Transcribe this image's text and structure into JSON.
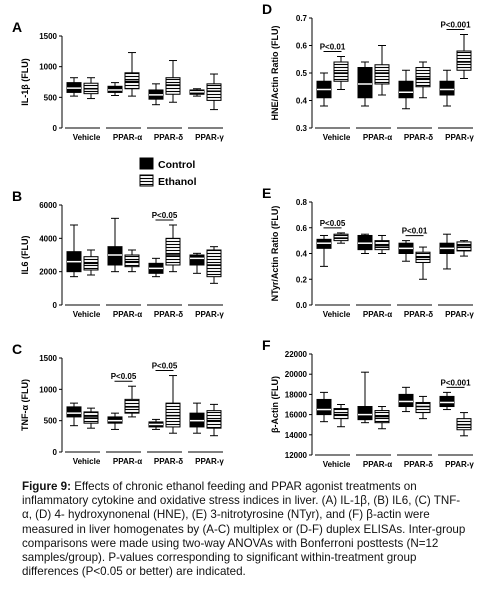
{
  "legend": [
    {
      "name": "Control",
      "color": "#000000"
    },
    {
      "name": "Ethanol",
      "color": "#ffffff",
      "pattern": "stripes"
    }
  ],
  "chart_data": [
    {
      "type": "box",
      "title": "A",
      "y_label": "IL-1β (FLU)",
      "categories": [
        "Vehicle",
        "PPAR-α",
        "PPAR-δ",
        "PPAR-γ"
      ],
      "ylim": [
        0,
        1500
      ],
      "yticks": [
        0,
        500,
        1000,
        1500
      ],
      "series": [
        {
          "values": [
            [
              520,
              580,
              650,
              740,
              820
            ],
            [
              530,
              580,
              620,
              680,
              740
            ],
            [
              380,
              470,
              540,
              620,
              720
            ],
            [
              520,
              550,
              590,
              620,
              640
            ]
          ]
        },
        {
          "values": [
            [
              480,
              560,
              640,
              730,
              820
            ],
            [
              520,
              640,
              760,
              900,
              1230
            ],
            [
              420,
              550,
              700,
              820,
              1100
            ],
            [
              300,
              450,
              600,
              720,
              880
            ]
          ]
        }
      ],
      "annotations": []
    },
    {
      "type": "box",
      "title": "B",
      "y_label": "IL6 (FLU)",
      "categories": [
        "Vehicle",
        "PPAR-α",
        "PPAR-δ",
        "PPAR-γ"
      ],
      "ylim": [
        0,
        6000
      ],
      "yticks": [
        0,
        2000,
        4000,
        6000
      ],
      "series": [
        {
          "values": [
            [
              1700,
              2000,
              2600,
              3200,
              4800
            ],
            [
              2000,
              2400,
              3000,
              3500,
              5200
            ],
            [
              1700,
              1900,
              2200,
              2500,
              2800
            ],
            [
              1900,
              2400,
              2800,
              3000,
              3100
            ]
          ]
        },
        {
          "values": [
            [
              1800,
              2100,
              2500,
              2900,
              3300
            ],
            [
              2000,
              2300,
              2600,
              3000,
              3300
            ],
            [
              2000,
              2400,
              3000,
              4000,
              4800
            ],
            [
              1300,
              1700,
              2400,
              3300,
              3500
            ]
          ]
        }
      ],
      "annotations": [
        {
          "text": "P<0.05",
          "category": "PPAR-δ"
        }
      ]
    },
    {
      "type": "box",
      "title": "C",
      "y_label": "TNF-α (FLU)",
      "categories": [
        "Vehicle",
        "PPAR-α",
        "PPAR-δ",
        "PPAR-γ"
      ],
      "ylim": [
        0,
        1500
      ],
      "yticks": [
        0,
        500,
        1000,
        1500
      ],
      "series": [
        {
          "values": [
            [
              420,
              560,
              620,
              720,
              780
            ],
            [
              360,
              460,
              500,
              560,
              620
            ],
            [
              360,
              400,
              440,
              480,
              520
            ],
            [
              300,
              400,
              500,
              620,
              780
            ]
          ]
        },
        {
          "values": [
            [
              380,
              460,
              560,
              640,
              700
            ],
            [
              560,
              620,
              720,
              840,
              1050
            ],
            [
              300,
              400,
              580,
              780,
              1220
            ],
            [
              260,
              380,
              500,
              660,
              760
            ]
          ]
        }
      ],
      "annotations": [
        {
          "text": "P<0.05",
          "category": "PPAR-α"
        },
        {
          "text": "P<0.05",
          "category": "PPAR-δ"
        }
      ]
    },
    {
      "type": "box",
      "title": "D",
      "y_label": "HNE/Actin Ratio (FLU)",
      "categories": [
        "Vehicle",
        "PPAR-α",
        "PPAR-δ",
        "PPAR-γ"
      ],
      "ylim": [
        0.3,
        0.7
      ],
      "yticks": [
        0.3,
        0.4,
        0.5,
        0.6,
        0.7
      ],
      "series": [
        {
          "values": [
            [
              0.38,
              0.41,
              0.44,
              0.47,
              0.5
            ],
            [
              0.38,
              0.41,
              0.46,
              0.52,
              0.54
            ],
            [
              0.37,
              0.41,
              0.43,
              0.47,
              0.51
            ],
            [
              0.38,
              0.42,
              0.44,
              0.47,
              0.51
            ]
          ]
        },
        {
          "values": [
            [
              0.44,
              0.47,
              0.5,
              0.54,
              0.56
            ],
            [
              0.42,
              0.46,
              0.5,
              0.53,
              0.6
            ],
            [
              0.41,
              0.45,
              0.48,
              0.52,
              0.54
            ],
            [
              0.48,
              0.51,
              0.54,
              0.58,
              0.64
            ]
          ]
        }
      ],
      "annotations": [
        {
          "text": "P<0.01",
          "category": "Vehicle"
        },
        {
          "text": "P<0.001",
          "category": "PPAR-γ"
        }
      ]
    },
    {
      "type": "box",
      "title": "E",
      "y_label": "NTyr/Actin Ratio (FLU)",
      "categories": [
        "Vehicle",
        "PPAR-α",
        "PPAR-δ",
        "PPAR-γ"
      ],
      "ylim": [
        0,
        0.8
      ],
      "yticks": [
        {
          "value": 0,
          "label": "0.0"
        },
        0.2,
        0.4,
        0.6,
        0.8
      ],
      "series": [
        {
          "values": [
            [
              0.3,
              0.44,
              0.48,
              0.51,
              0.54
            ],
            [
              0.4,
              0.43,
              0.48,
              0.54,
              0.55
            ],
            [
              0.34,
              0.4,
              0.44,
              0.48,
              0.5
            ],
            [
              0.28,
              0.4,
              0.44,
              0.48,
              0.55
            ]
          ]
        },
        {
          "values": [
            [
              0.48,
              0.5,
              0.52,
              0.55,
              0.56
            ],
            [
              0.4,
              0.43,
              0.46,
              0.5,
              0.54
            ],
            [
              0.2,
              0.33,
              0.37,
              0.41,
              0.45
            ],
            [
              0.38,
              0.42,
              0.46,
              0.49,
              0.5
            ]
          ]
        }
      ],
      "annotations": [
        {
          "text": "P<0.05",
          "category": "Vehicle"
        },
        {
          "text": "P<0.01",
          "category": "PPAR-δ"
        }
      ]
    },
    {
      "type": "box",
      "title": "F",
      "y_label": "β-Actin (FLU)",
      "categories": [
        "Vehicle",
        "PPAR-α",
        "PPAR-δ",
        "PPAR-γ"
      ],
      "ylim": [
        12000,
        22000
      ],
      "yticks": [
        12000,
        14000,
        16000,
        18000,
        20000,
        22000
      ],
      "series": [
        {
          "values": [
            [
              15300,
              16000,
              16500,
              17500,
              18200
            ],
            [
              15200,
              15500,
              16000,
              16800,
              20200
            ],
            [
              16300,
              16800,
              17300,
              18000,
              18700
            ],
            [
              16500,
              16800,
              17200,
              17800,
              18200
            ]
          ]
        },
        {
          "values": [
            [
              14800,
              15600,
              16000,
              16600,
              17000
            ],
            [
              14600,
              15200,
              15800,
              16400,
              16800
            ],
            [
              15600,
              16200,
              16800,
              17200,
              17800
            ],
            [
              13900,
              14500,
              15000,
              15600,
              16200
            ]
          ]
        }
      ],
      "annotations": [
        {
          "text": "P<0.001",
          "category": "PPAR-γ"
        }
      ]
    }
  ],
  "caption": {
    "label": "Figure 9:",
    "text": "Effects of chronic ethanol feeding and PPAR agonist treatments on inflammatory cytokine and oxidative stress indices in liver. (A) IL-1β, (B) IL6, (C) TNF-α, (D) 4- hydroxynonenal (HNE), (E) 3-nitrotyrosine (NTyr), and (F) β-actin were measured in liver homogenates by (A-C) multiplex or (D-F) duplex ELISAs. Inter-group comparisons were made using two-way ANOVAs with Bonferroni posttests (N=12 samples/group). P-values corresponding to significant within-treatment group differences (P<0.05 or better) are indicated."
  }
}
